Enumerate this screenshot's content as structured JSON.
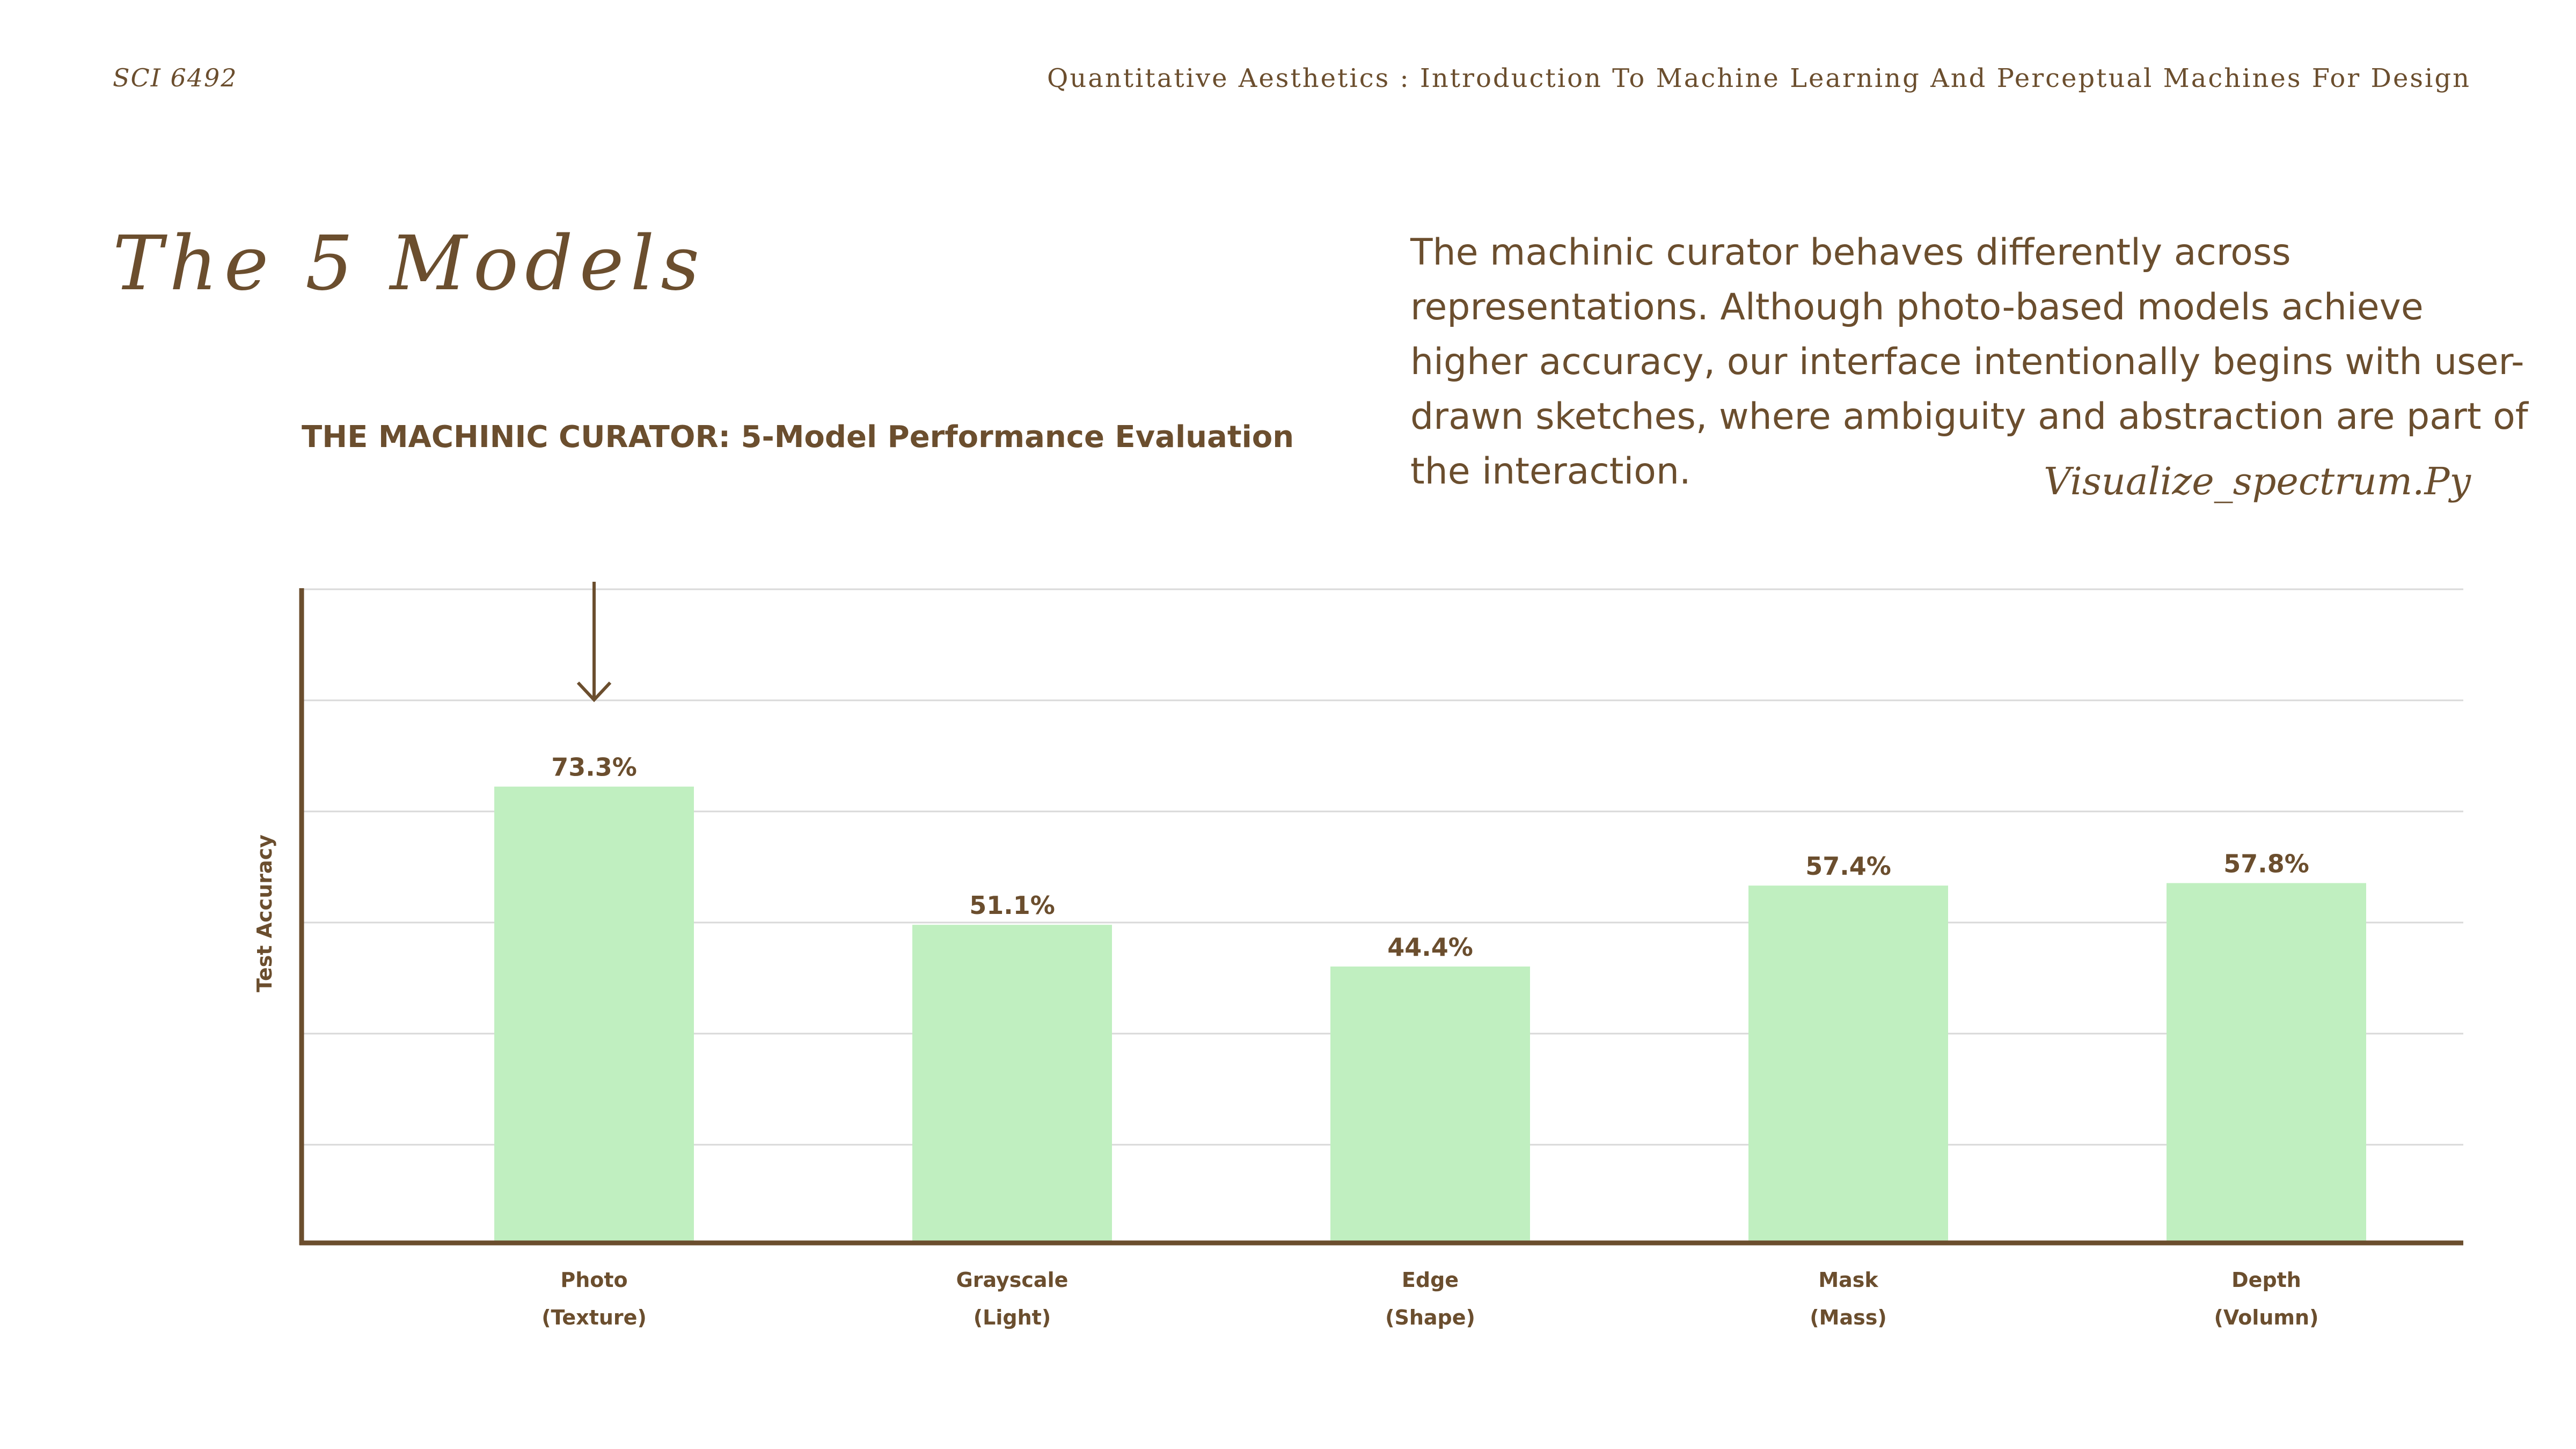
{
  "header": {
    "course_code": "SCI 6492",
    "course_title": "Quantitative Aesthetics : Introduction To Machine Learning And Perceptual Machines For Design"
  },
  "slide": {
    "title": "The 5 Models",
    "description": "The machinic curator behaves differently across representations. Although photo-based models achieve higher accuracy, our interface intentionally begins with user-drawn sketches, where ambiguity and abstraction are part of the interaction.",
    "filename": "Visualize_spectrum.Py"
  },
  "colors": {
    "text": "#6b4e2e",
    "bar": "#c0efc0",
    "grid": "#d9d9d9",
    "axis": "#6b4e2e"
  },
  "chart_data": {
    "type": "bar",
    "title": "THE MACHINIC CURATOR: 5-Model Performance Evaluation",
    "ylabel": "Test Accuracy",
    "xlabel": "",
    "categories": [
      [
        "Photo",
        "(Texture)"
      ],
      [
        "Grayscale",
        "(Light)"
      ],
      [
        "Edge",
        "(Shape)"
      ],
      [
        "Mask",
        "(Mass)"
      ],
      [
        "Depth",
        "(Volumn)"
      ]
    ],
    "values": [
      73.3,
      51.1,
      44.4,
      57.4,
      57.8
    ],
    "value_labels": [
      "73.3%",
      "51.1%",
      "44.4%",
      "57.4%",
      "57.8%"
    ],
    "ylim": [
      0,
      105
    ],
    "grid": true,
    "highlight_arrow_category": "Photo"
  }
}
